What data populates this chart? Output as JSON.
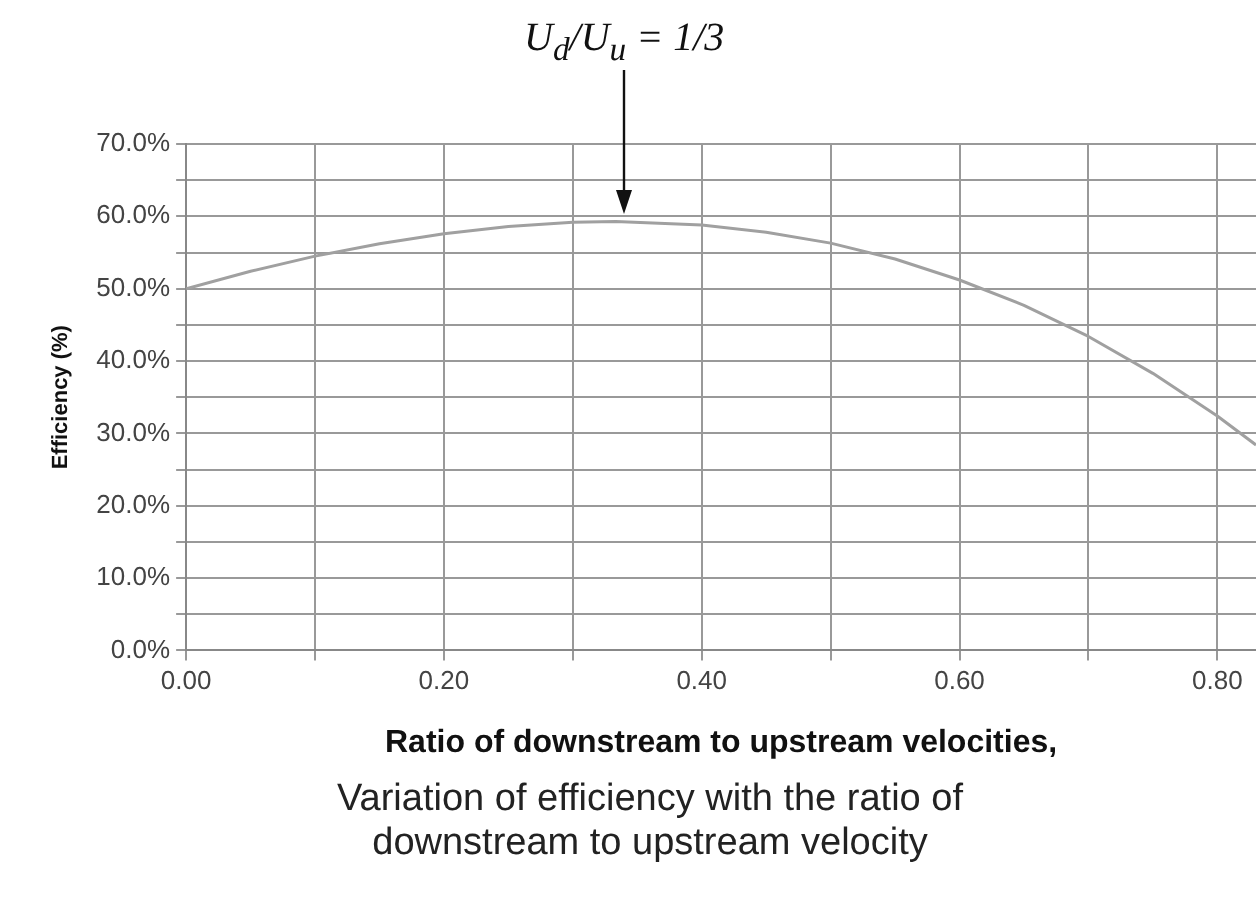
{
  "chart_data": {
    "type": "line",
    "xlabel": "Ratio of downstream to upstream velocities,",
    "ylabel": "Efficiency (%)",
    "x": [
      0,
      0.05,
      0.1,
      0.15,
      0.2,
      0.25,
      0.3,
      0.3333,
      0.4,
      0.45,
      0.5,
      0.55,
      0.6,
      0.65,
      0.7,
      0.75,
      0.8,
      0.83
    ],
    "series": [
      {
        "color": "#a0a0a0",
        "values": [
          50,
          52.4,
          54.5,
          56.2,
          57.6,
          58.6,
          59.2,
          59.3,
          58.8,
          57.8,
          56.3,
          54.1,
          51.2,
          47.7,
          43.4,
          38.3,
          32.4,
          28.4
        ]
      }
    ],
    "xlim": [
      0,
      0.83
    ],
    "xticks": [
      {
        "value": 0,
        "label": "0.00"
      },
      {
        "value": 0.1,
        "label": null
      },
      {
        "value": 0.2,
        "label": "0.20"
      },
      {
        "value": 0.3,
        "label": null
      },
      {
        "value": 0.4,
        "label": "0.40"
      },
      {
        "value": 0.5,
        "label": null
      },
      {
        "value": 0.6,
        "label": "0.60"
      },
      {
        "value": 0.7,
        "label": null
      },
      {
        "value": 0.8,
        "label": "0.80"
      }
    ],
    "ylim": [
      0,
      70
    ],
    "yticks": [
      {
        "value": 0,
        "label": "0.0%"
      },
      {
        "value": 5,
        "label": null
      },
      {
        "value": 10,
        "label": "10.0%"
      },
      {
        "value": 15,
        "label": null
      },
      {
        "value": 20,
        "label": "20.0%"
      },
      {
        "value": 25,
        "label": null
      },
      {
        "value": 30,
        "label": "30.0%"
      },
      {
        "value": 35,
        "label": null
      },
      {
        "value": 40,
        "label": "40.0%"
      },
      {
        "value": 45,
        "label": null
      },
      {
        "value": 50,
        "label": "50.0%"
      },
      {
        "value": 55,
        "label": null
      },
      {
        "value": 60,
        "label": "60.0%"
      },
      {
        "value": 65,
        "label": null
      },
      {
        "value": 70,
        "label": "70.0%"
      }
    ],
    "grid": true,
    "legend": false,
    "marker": "none",
    "line_style": "solid",
    "annotations": [
      "U$_{d}$/U$_{u}$ = 1/3",
      "Variation of efficiency with the ratio of downstream to upstream velocity"
    ]
  }
}
